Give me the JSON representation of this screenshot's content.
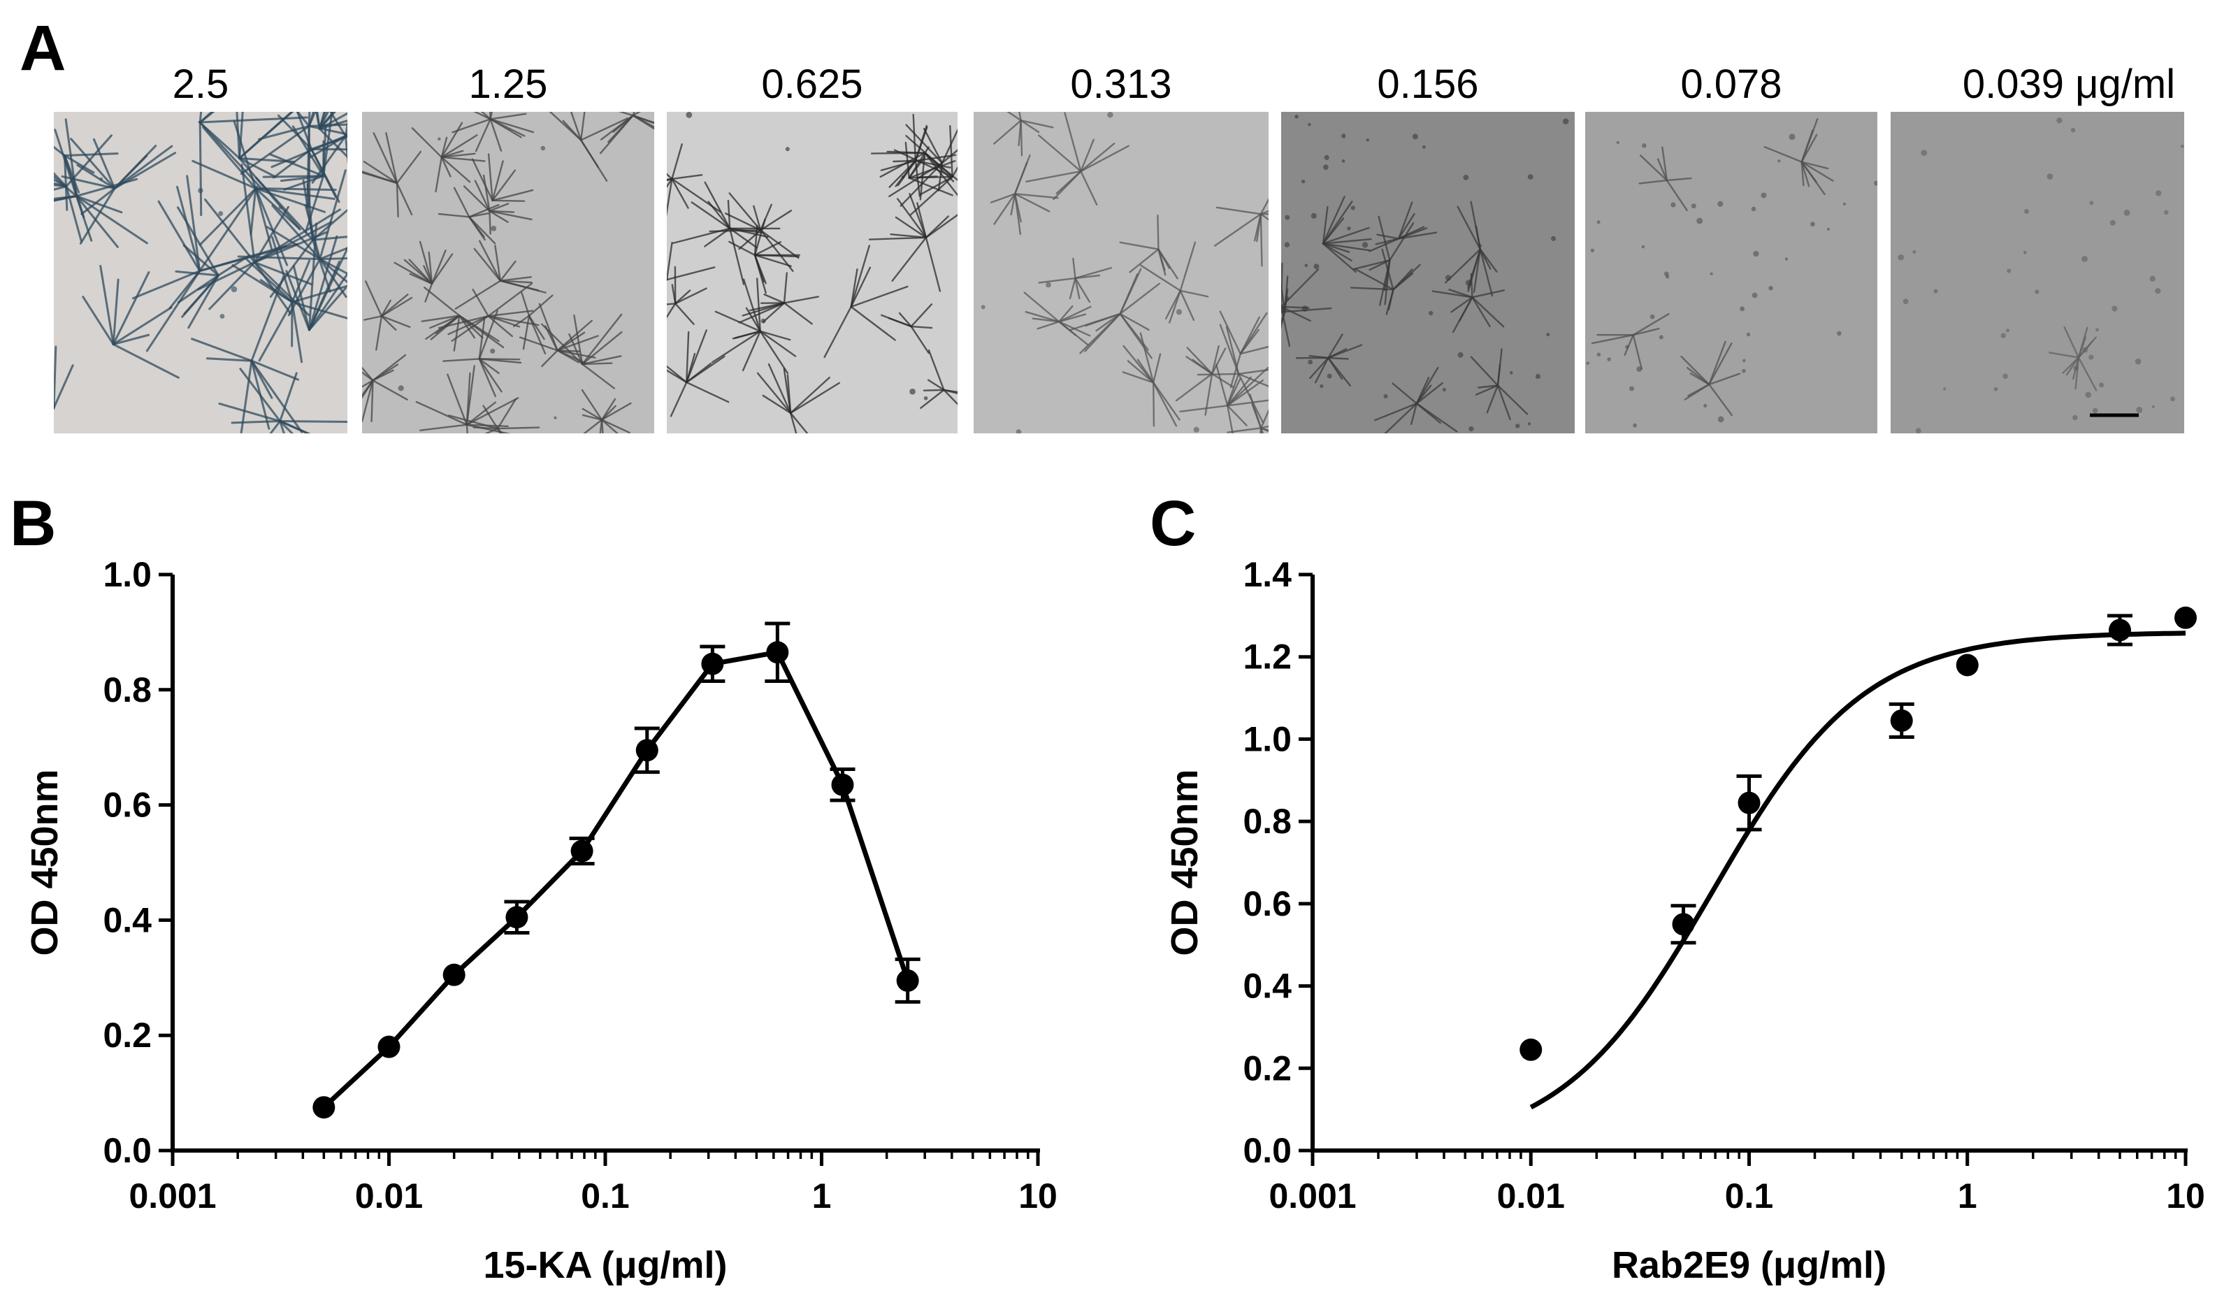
{
  "panel_a": {
    "letter": "A",
    "unit": "μg/ml",
    "concentrations": [
      "2.5",
      "1.25",
      "0.625",
      "0.313",
      "0.156",
      "0.078",
      "0.039"
    ],
    "micrograph_tones": [
      "#d6d3d0",
      "#bdbdbd",
      "#cfcfcf",
      "#bbbbbb",
      "#8a8a8a",
      "#a2a2a2",
      "#9a9a9a"
    ],
    "micrograph_ink": [
      "#2f4a5c",
      "#444444",
      "#2a2a2a",
      "#555555",
      "#3a3a3a",
      "#505050",
      "#606060"
    ],
    "micrograph_density": [
      1.0,
      0.9,
      0.8,
      0.65,
      0.45,
      0.15,
      0.02
    ]
  },
  "chart_data": [
    {
      "panel": "B",
      "type": "line",
      "xlabel": "15-KA (μg/ml)",
      "ylabel": "OD 450nm",
      "xscale": "log",
      "xlim": [
        0.001,
        10
      ],
      "ylim": [
        0,
        1.0
      ],
      "xticks": [
        "0.001",
        "0.01",
        "0.1",
        "1",
        "10"
      ],
      "yticks": [
        "0.0",
        "0.2",
        "0.4",
        "0.6",
        "0.8",
        "1.0"
      ],
      "series": [
        {
          "x": [
            0.005,
            0.01,
            0.02,
            0.039,
            0.078,
            0.156,
            0.313,
            0.625,
            1.25,
            2.5
          ],
          "y": [
            0.075,
            0.18,
            0.305,
            0.405,
            0.52,
            0.695,
            0.845,
            0.865,
            0.635,
            0.295
          ],
          "err": [
            0.0,
            0.0,
            0.0,
            0.027,
            0.022,
            0.038,
            0.03,
            0.05,
            0.027,
            0.037
          ]
        }
      ]
    },
    {
      "panel": "C",
      "type": "scatter",
      "xlabel": "Rab2E9 (μg/ml)",
      "ylabel": "OD 450nm",
      "xscale": "log",
      "xlim": [
        0.001,
        10
      ],
      "ylim": [
        0,
        1.4
      ],
      "xticks": [
        "0.001",
        "0.01",
        "0.1",
        "1",
        "10"
      ],
      "yticks": [
        "0.0",
        "0.2",
        "0.4",
        "0.6",
        "0.8",
        "1.0",
        "1.2",
        "1.4"
      ],
      "series": [
        {
          "x": [
            0.01,
            0.05,
            0.1,
            0.5,
            1.0,
            5.0,
            10.0
          ],
          "y": [
            0.245,
            0.55,
            0.845,
            1.045,
            1.18,
            1.265,
            1.295
          ],
          "err": [
            0.0,
            0.045,
            0.065,
            0.04,
            0.0,
            0.035,
            0.0
          ]
        }
      ],
      "fit": {
        "type": "sigmoid",
        "bottom": 0.0,
        "top": 1.26,
        "ec50": 0.068,
        "hill": 1.25,
        "x_range": [
          0.01,
          10
        ]
      }
    }
  ]
}
